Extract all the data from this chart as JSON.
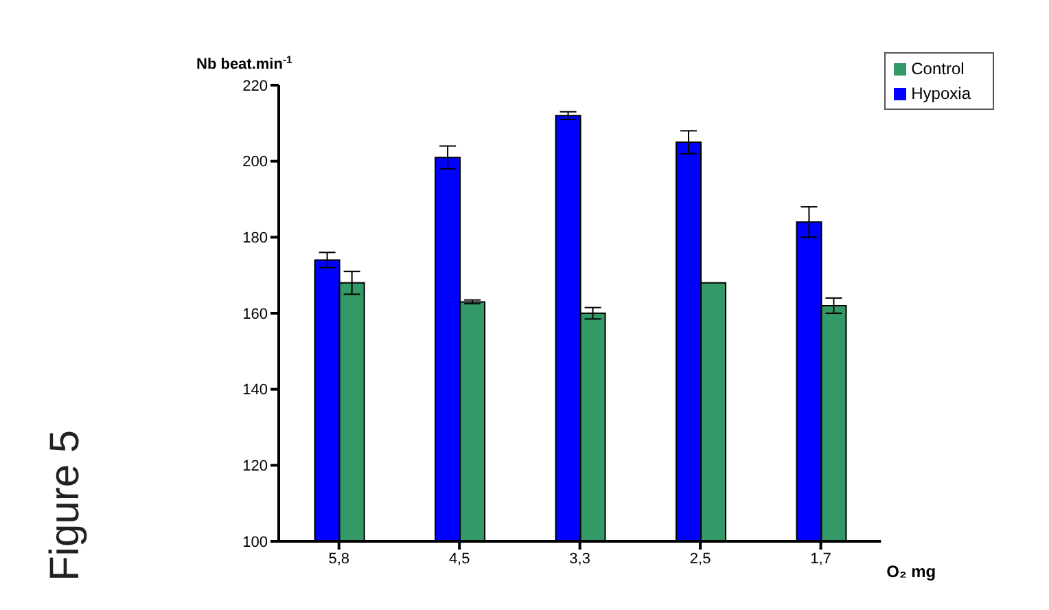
{
  "chart_data": {
    "type": "bar",
    "categories": [
      "5,8",
      "4,5",
      "3,3",
      "2,5",
      "1,7"
    ],
    "series": [
      {
        "name": "Hypoxia",
        "color": "#0000ff",
        "values": [
          174,
          201,
          212,
          205,
          184
        ],
        "errors": [
          2,
          3,
          1,
          3,
          4
        ]
      },
      {
        "name": "Control",
        "color": "#339966",
        "values": [
          168,
          163,
          160,
          168,
          162
        ],
        "errors": [
          3,
          0.5,
          1.5,
          null,
          2
        ]
      }
    ],
    "ylabel": "Nb beat.min$^{-1}$",
    "xlabel": "O₂ mg",
    "ylim": [
      100,
      220
    ],
    "yticks": [
      100,
      120,
      140,
      160,
      180,
      200,
      220
    ],
    "legend": "top right",
    "annotations": [
      "Figure 5"
    ]
  }
}
